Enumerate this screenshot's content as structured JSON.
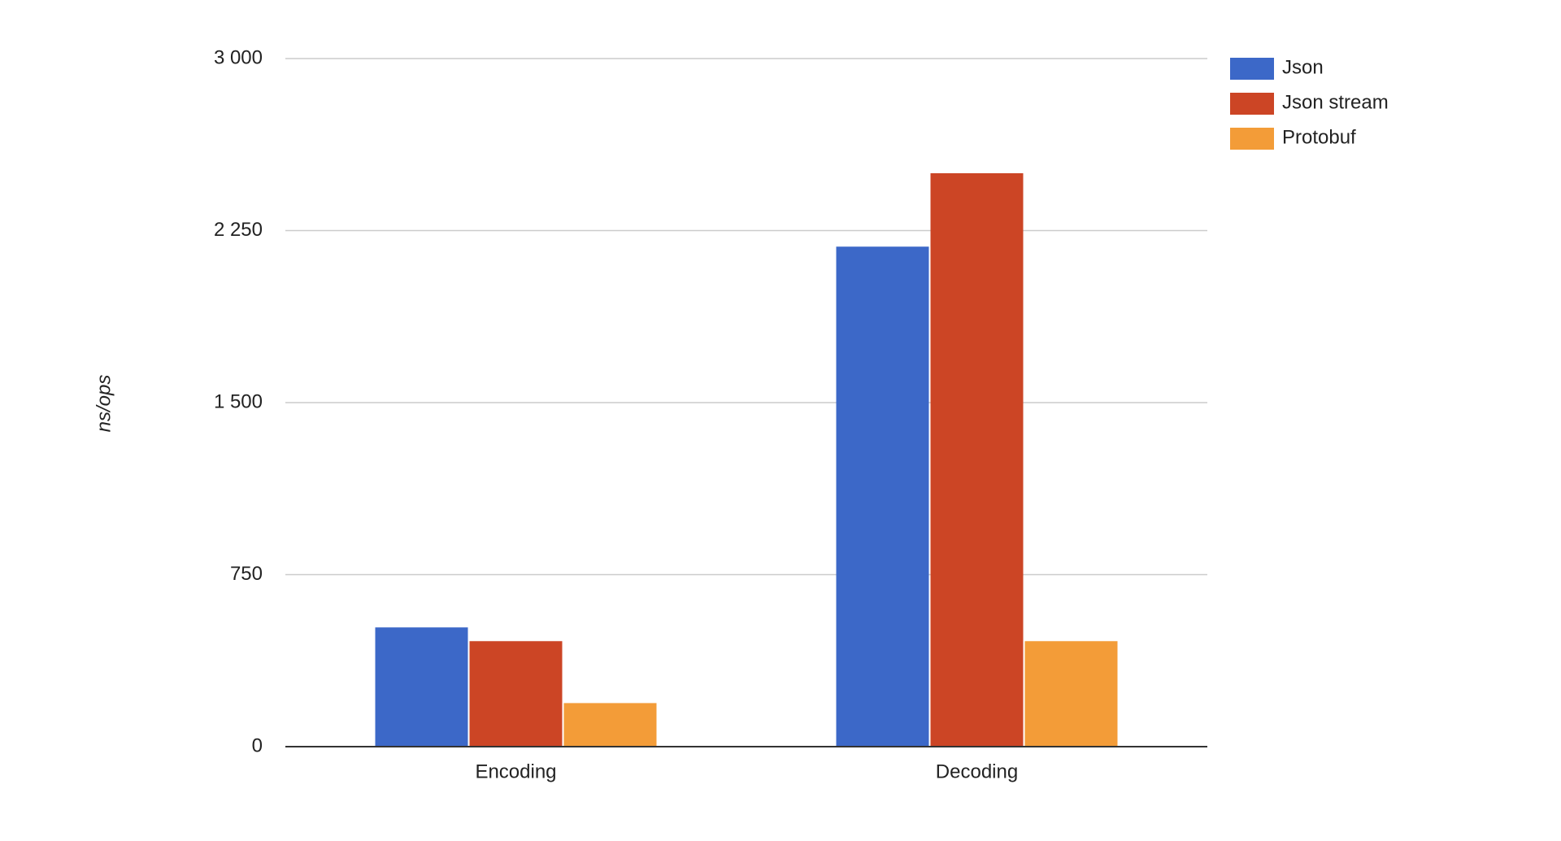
{
  "chart_data": {
    "type": "bar",
    "y_label": "ns/ops",
    "categories": [
      "Encoding",
      "Decoding"
    ],
    "series": [
      {
        "name": "Json",
        "color": "#3c68c8",
        "values": [
          520,
          2180
        ]
      },
      {
        "name": "Json stream",
        "color": "#cc4525",
        "values": [
          460,
          2500
        ]
      },
      {
        "name": "Protobuf",
        "color": "#f39c38",
        "values": [
          190,
          460
        ]
      }
    ],
    "ylim": [
      0,
      3000
    ],
    "yticks": [
      0,
      750,
      {
        "value": 1500,
        "label": "1 500"
      },
      {
        "value": 2250,
        "label": "2 250"
      },
      {
        "value": 3000,
        "label": "3 000"
      }
    ],
    "grid": true,
    "legend": "right"
  }
}
